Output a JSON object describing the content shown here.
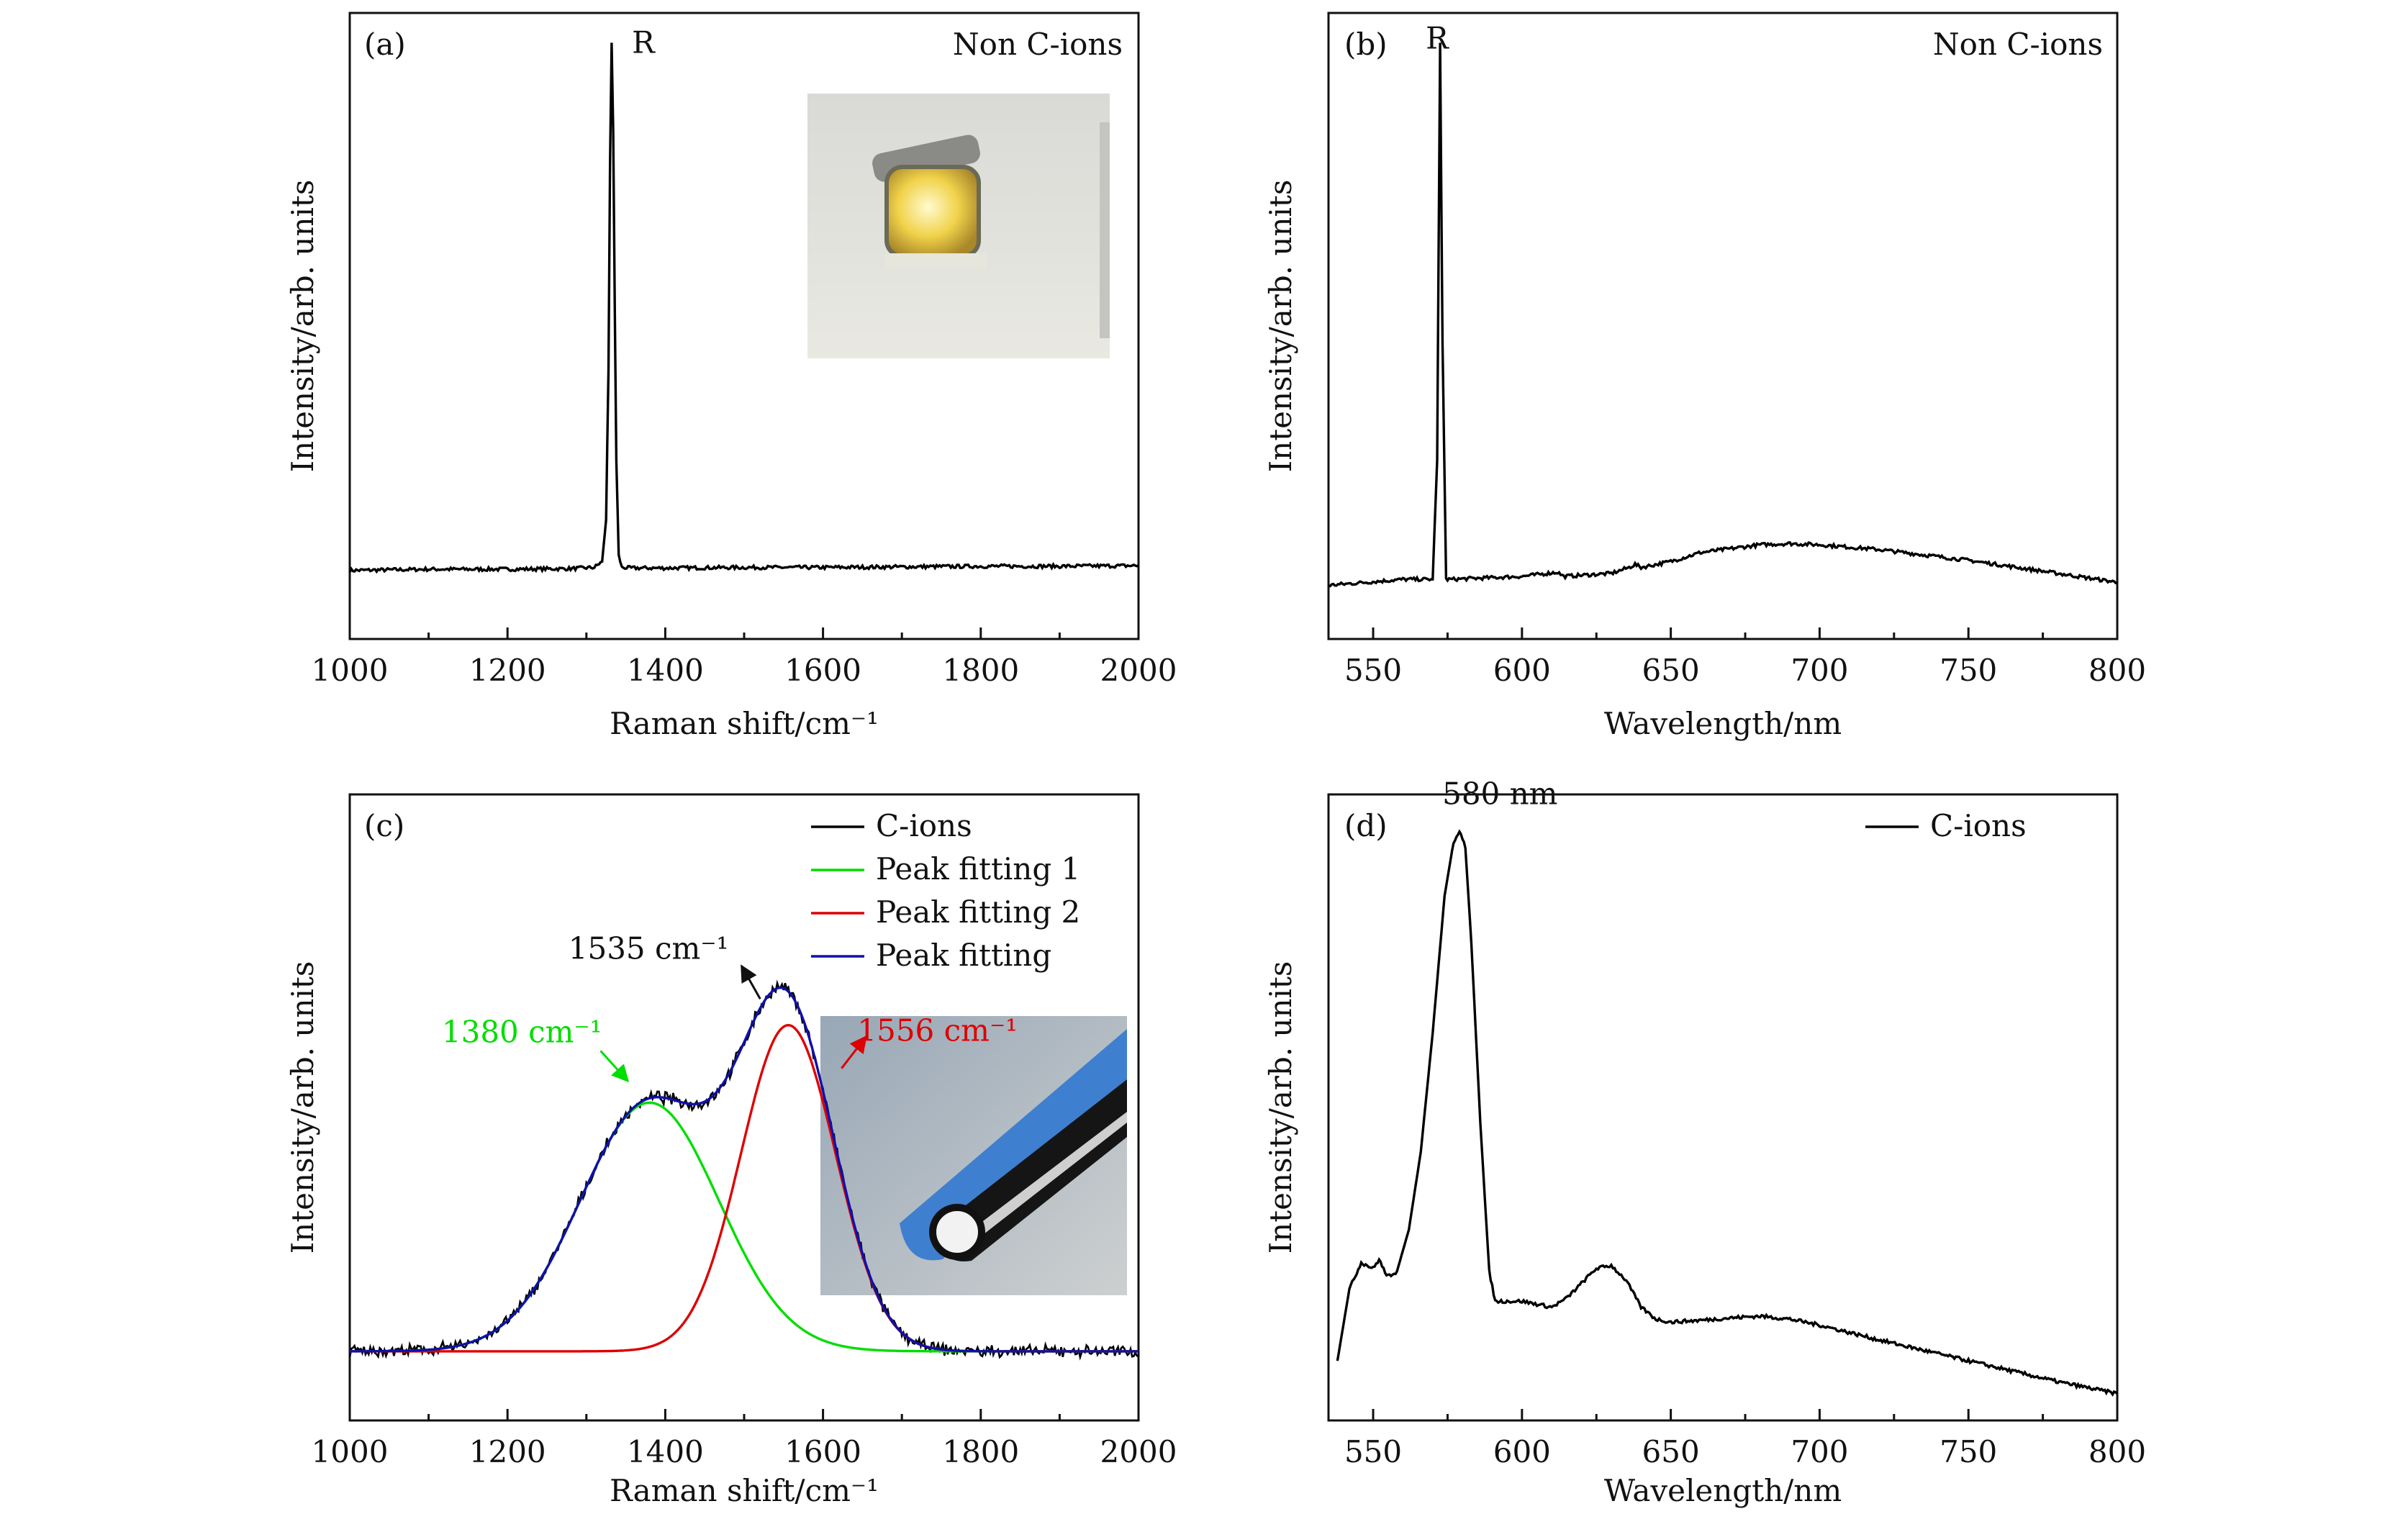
{
  "chart_data": [
    {
      "panel_label": "(a)",
      "type": "line",
      "corner_text": "Non C-ions",
      "xlabel": "Raman shift/cm⁻¹",
      "ylabel": "Intensity/arb. units",
      "xlim": [
        1000,
        2000
      ],
      "xticks": [
        1000,
        1200,
        1400,
        1600,
        1800,
        2000
      ],
      "ylim": [
        0,
        1.05
      ],
      "series": [
        {
          "color": "#000000",
          "x": [
            1000,
            1100,
            1200,
            1280,
            1310,
            1320,
            1325,
            1328,
            1330,
            1332,
            1334,
            1336,
            1338,
            1341,
            1345,
            1355,
            1400,
            1500,
            1600,
            1700,
            1800,
            1900,
            2000
          ],
          "y": [
            0.115,
            0.117,
            0.117,
            0.118,
            0.12,
            0.13,
            0.2,
            0.45,
            0.8,
            1.0,
            0.85,
            0.55,
            0.3,
            0.14,
            0.12,
            0.119,
            0.119,
            0.12,
            0.12,
            0.121,
            0.122,
            0.122,
            0.123
          ]
        }
      ],
      "annotations": [
        {
          "text": "R",
          "x": 1345,
          "y": 1.0
        }
      ],
      "inset_image": "yellow-diamond-crystal-photo"
    },
    {
      "panel_label": "(b)",
      "type": "line",
      "corner_text": "Non C-ions",
      "xlabel": "Wavelength/nm",
      "ylabel": "Intensity/arb. units",
      "xlim": [
        535,
        800
      ],
      "xticks": [
        550,
        600,
        650,
        700,
        750,
        800
      ],
      "ylim": [
        0,
        1.05
      ],
      "series": [
        {
          "color": "#000000",
          "x": [
            535,
            560,
            570,
            571.5,
            572.5,
            573.3,
            574.5,
            576,
            600,
            612,
            614,
            630,
            636,
            638,
            640,
            650,
            660,
            680,
            690,
            700,
            720,
            750,
            780,
            800
          ],
          "y": [
            0.09,
            0.1,
            0.1,
            0.3,
            1.0,
            0.5,
            0.1,
            0.1,
            0.105,
            0.112,
            0.105,
            0.11,
            0.12,
            0.125,
            0.12,
            0.13,
            0.145,
            0.158,
            0.16,
            0.158,
            0.15,
            0.132,
            0.11,
            0.095
          ]
        }
      ],
      "annotations": [
        {
          "text": "R",
          "x": 573,
          "y": 1.0
        }
      ]
    },
    {
      "panel_label": "(c)",
      "type": "line",
      "xlabel": "Raman shift/cm⁻¹",
      "ylabel": "Intensity/arb. units",
      "xlim": [
        1000,
        2000
      ],
      "xticks": [
        1000,
        1200,
        1400,
        1600,
        1800,
        2000
      ],
      "ylim": [
        0,
        1.05
      ],
      "baseline": 0.116,
      "legend": "top-right",
      "series": [
        {
          "name": "C-ions",
          "color": "#000000",
          "kind": "measured",
          "noise": 0.012
        },
        {
          "name": "Peak fitting 1",
          "color": "#00dd00",
          "kind": "gaussian",
          "center": 1380,
          "sigma": 88,
          "amplitude": 0.417
        },
        {
          "name": "Peak fitting 2",
          "color": "#dd0000",
          "kind": "gaussian",
          "center": 1556,
          "sigma": 60,
          "amplitude": 0.547
        },
        {
          "name": "Peak fitting",
          "color": "#1010aa",
          "kind": "sum"
        }
      ],
      "annotations": [
        {
          "text": "1535 cm⁻¹",
          "color": "#111111",
          "x": 1535,
          "y": 0.69
        },
        {
          "text": "1380 cm⁻¹",
          "color": "#00dd00",
          "x": 1380,
          "y": 0.533
        },
        {
          "text": "1556 cm⁻¹",
          "color": "#dd0000",
          "x": 1556,
          "y": 0.663
        }
      ],
      "inset_image": "diamond-tip-in-holder-photo"
    },
    {
      "panel_label": "(d)",
      "type": "line",
      "xlabel": "Wavelength/nm",
      "ylabel": "Intensity/arb. units",
      "xlim": [
        535,
        800
      ],
      "xticks": [
        550,
        600,
        650,
        700,
        750,
        800
      ],
      "ylim": [
        0,
        1.05
      ],
      "legend": "top-right",
      "series": [
        {
          "name": "C-ions",
          "color": "#000000",
          "x": [
            538,
            542,
            546,
            550,
            552,
            554,
            556,
            558,
            562,
            566,
            570,
            574,
            577,
            579,
            581,
            583,
            586,
            589,
            591,
            595,
            600,
            605,
            610,
            615,
            620,
            625,
            630,
            635,
            640,
            645,
            650,
            660,
            670,
            680,
            690,
            700,
            720,
            750,
            780,
            800
          ],
          "y": [
            0.1,
            0.22,
            0.265,
            0.255,
            0.27,
            0.248,
            0.24,
            0.25,
            0.32,
            0.45,
            0.65,
            0.88,
            0.97,
            0.99,
            0.96,
            0.8,
            0.5,
            0.25,
            0.2,
            0.2,
            0.2,
            0.195,
            0.19,
            0.205,
            0.23,
            0.255,
            0.26,
            0.235,
            0.19,
            0.17,
            0.165,
            0.168,
            0.172,
            0.175,
            0.17,
            0.16,
            0.135,
            0.1,
            0.065,
            0.045
          ]
        }
      ],
      "annotations": [
        {
          "text": "580 nm",
          "x": 580,
          "y": 0.99
        }
      ]
    }
  ]
}
